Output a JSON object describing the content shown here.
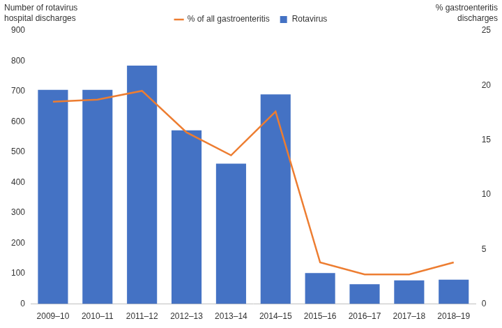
{
  "chart_data": {
    "type": "bar",
    "y_label": "Number of rotavirus hospital discharges",
    "y2_label": "% gastroenteritis discharges",
    "categories": [
      "2009–10",
      "2010–11",
      "2011–12",
      "2012–13",
      "2013–14",
      "2014–15",
      "2015–16",
      "2016–17",
      "2017–18",
      "2018–19"
    ],
    "series": [
      {
        "name": "Rotavirus",
        "type": "bar",
        "color": "#4472c4",
        "values": [
          705,
          705,
          785,
          572,
          462,
          690,
          102,
          65,
          78,
          80
        ]
      },
      {
        "name": "% of all gastroenteritis",
        "type": "line",
        "color": "#ed7d31",
        "axis": "y2",
        "values": [
          18.5,
          18.7,
          19.5,
          15.7,
          13.6,
          17.6,
          3.8,
          2.7,
          2.7,
          3.8
        ]
      }
    ],
    "ylim": [
      0,
      900
    ],
    "yticks": [
      0,
      100,
      200,
      300,
      400,
      500,
      600,
      700,
      800,
      900
    ],
    "y2lim": [
      0,
      25
    ],
    "y2ticks": [
      0,
      5,
      10,
      15,
      20,
      25
    ],
    "grid": false,
    "legend": "top"
  }
}
